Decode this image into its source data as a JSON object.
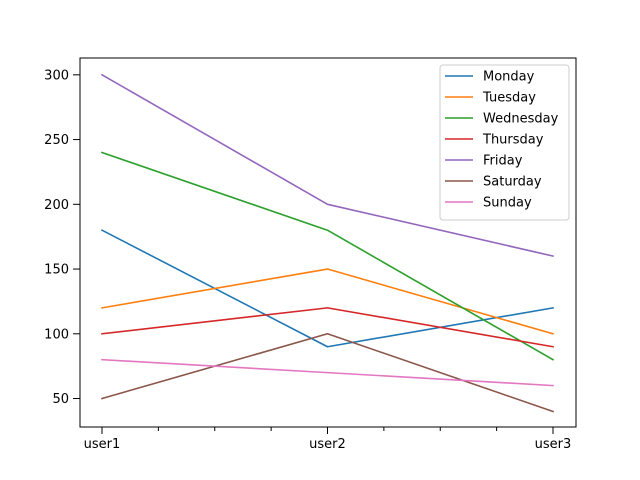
{
  "chart_data": {
    "type": "line",
    "title": "",
    "xlabel": "",
    "ylabel": "",
    "categories": [
      "user1",
      "user2",
      "user3"
    ],
    "x_minor_ticks": 7,
    "y_ticks": [
      50,
      100,
      150,
      200,
      250,
      300
    ],
    "ylim": [
      28,
      313
    ],
    "grid": false,
    "legend_position": "top-right",
    "series": [
      {
        "name": "Monday",
        "color": "#1f77b4",
        "values": [
          180,
          90,
          120
        ]
      },
      {
        "name": "Tuesday",
        "color": "#ff7f0e",
        "values": [
          120,
          150,
          100
        ]
      },
      {
        "name": "Wednesday",
        "color": "#2ca02c",
        "values": [
          240,
          180,
          80
        ]
      },
      {
        "name": "Thursday",
        "color": "#d62728",
        "values": [
          100,
          120,
          90
        ]
      },
      {
        "name": "Friday",
        "color": "#9467bd",
        "values": [
          300,
          200,
          160
        ]
      },
      {
        "name": "Saturday",
        "color": "#8c564b",
        "values": [
          50,
          100,
          40
        ]
      },
      {
        "name": "Sunday",
        "color": "#e377c2",
        "values": [
          80,
          70,
          60
        ]
      }
    ]
  }
}
